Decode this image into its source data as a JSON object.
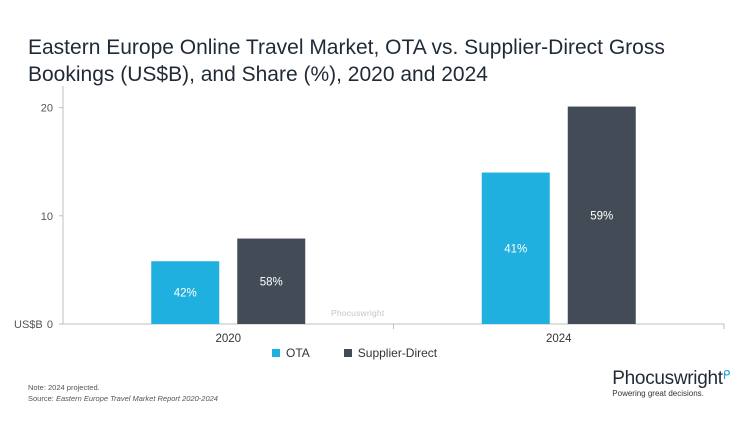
{
  "title": "Eastern Europe Online Travel Market, OTA vs. Supplier-Direct Gross Bookings (US$B), and Share (%), 2020 and 2024",
  "colors": {
    "ota": "#1fb0df",
    "supplier": "#434c56",
    "axis": "#bfbfbf"
  },
  "chart_data": {
    "type": "bar",
    "categories": [
      "2020",
      "2024"
    ],
    "series": [
      {
        "name": "OTA",
        "values": [
          5.8,
          14.0
        ],
        "labels": [
          "42%",
          "41%"
        ]
      },
      {
        "name": "Supplier-Direct",
        "values": [
          7.9,
          20.1
        ],
        "labels": [
          "58%",
          "59%"
        ]
      }
    ],
    "ylim": [
      0,
      22
    ],
    "yticks": [
      "0",
      "10",
      "20"
    ],
    "ylabel": "US$B",
    "legend": "bottom",
    "grid": false
  },
  "legend": {
    "ota": "OTA",
    "supplier": "Supplier-Direct"
  },
  "footnote": "Note: 2024 projected.",
  "source_prefix": "Source: ",
  "source_title": "Eastern Europe Travel Market Report 2020-2024",
  "watermark": "Phocuswright",
  "brand": {
    "name": "Phocuswright",
    "tagline": "Powering great decisions."
  }
}
